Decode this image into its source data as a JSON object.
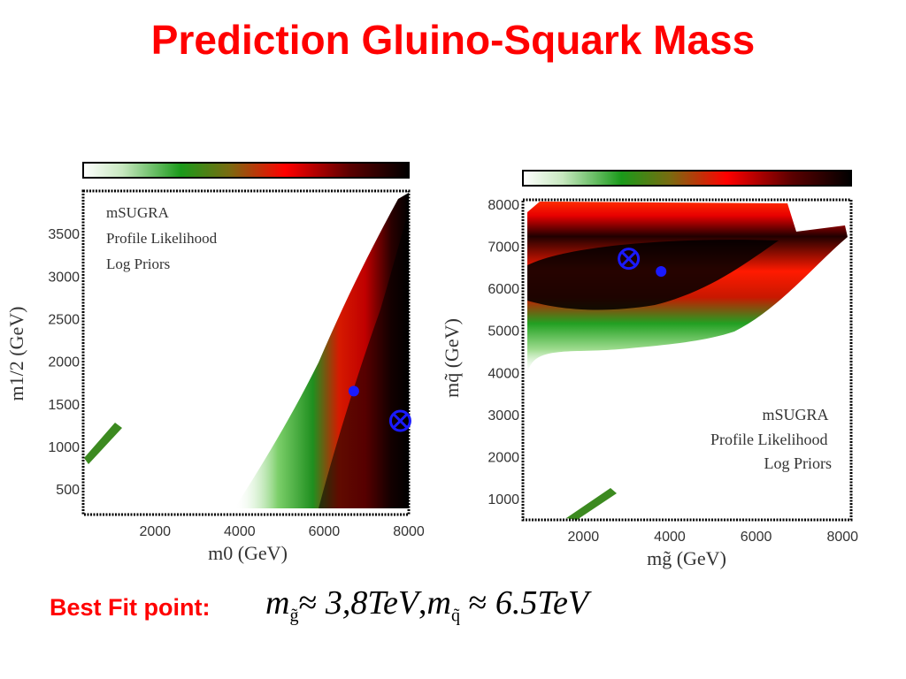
{
  "slide": {
    "title": "Prediction Gluino-Squark Mass",
    "best_fit_label": "Best Fit point:",
    "best_fit_equation": {
      "mg_symbol": "m",
      "mg_sub": "g̃",
      "mg_value": "3,8TeV",
      "sep": ",",
      "mq_symbol": "m",
      "mq_sub": "q̃",
      "mq_value": "6.5TeV",
      "approx": "≈"
    }
  },
  "chart_data": [
    {
      "type": "heatmap",
      "title": "",
      "xlabel": "m0 (GeV)",
      "ylabel": "m1/2 (GeV)",
      "xlim": [
        300,
        8000
      ],
      "ylim": [
        200,
        4000
      ],
      "x_ticks": [
        2000,
        4000,
        6000,
        8000
      ],
      "y_ticks": [
        500,
        1000,
        1500,
        2000,
        2500,
        3000,
        3500
      ],
      "annotations": [
        "mSUGRA",
        "Profile Likelihood",
        "Log Priors"
      ],
      "colorbar": [
        "#ffffff",
        "#1a8f1a",
        "#ff0000",
        "#000000"
      ],
      "markers": [
        {
          "name": "dot",
          "x": 6700,
          "y": 1650
        },
        {
          "name": "circle-cross",
          "x": 7800,
          "y": 1300
        }
      ]
    },
    {
      "type": "heatmap",
      "title": "",
      "xlabel": "mg̃ (GeV)",
      "ylabel": "mq̃ (GeV)",
      "xlim": [
        600,
        8200
      ],
      "ylim": [
        500,
        8100
      ],
      "x_ticks": [
        2000,
        4000,
        6000,
        8000
      ],
      "y_ticks": [
        1000,
        2000,
        3000,
        4000,
        5000,
        6000,
        7000,
        8000
      ],
      "annotations": [
        "mSUGRA",
        "Profile Likelihood",
        "Log Priors"
      ],
      "colorbar": [
        "#ffffff",
        "#1a8f1a",
        "#ff0000",
        "#000000"
      ],
      "markers": [
        {
          "name": "circle-cross",
          "x": 3050,
          "y": 6700
        },
        {
          "name": "dot",
          "x": 3800,
          "y": 6400
        }
      ]
    }
  ]
}
